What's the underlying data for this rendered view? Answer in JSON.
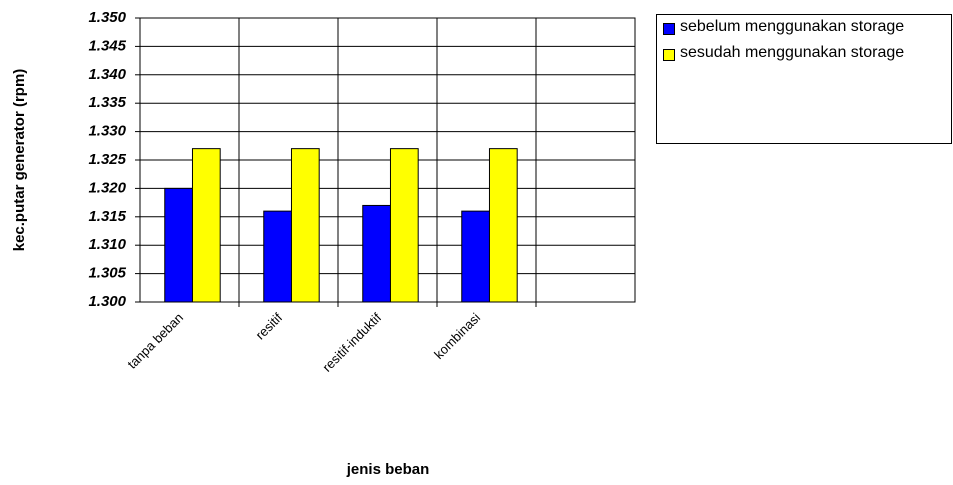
{
  "chart_data": {
    "type": "bar",
    "x_label": "jenis beban",
    "y_label": "kec.putar generator (rpm)",
    "categories": [
      "tanpa beban",
      "resitif",
      "resitif-induktif",
      "kombinasi",
      null
    ],
    "series": [
      {
        "name": "sebelum menggunakan storage",
        "color": "#0000ff",
        "values": [
          1.32,
          1.316,
          1.317,
          1.316,
          null
        ]
      },
      {
        "name": "sesudah menggunakan storage",
        "color": "#ffff00",
        "values": [
          1.327,
          1.327,
          1.327,
          1.327,
          null
        ]
      }
    ],
    "ylim": [
      1.3,
      1.35
    ],
    "yticks": [
      {
        "value": 1.3,
        "label": "1.300"
      },
      {
        "value": 1.305,
        "label": "1.305"
      },
      {
        "value": 1.31,
        "label": "1.310"
      },
      {
        "value": 1.315,
        "label": "1.315"
      },
      {
        "value": 1.32,
        "label": "1.320"
      },
      {
        "value": 1.325,
        "label": "1.325"
      },
      {
        "value": 1.33,
        "label": "1.330"
      },
      {
        "value": 1.335,
        "label": "1.335"
      },
      {
        "value": 1.34,
        "label": "1.340"
      },
      {
        "value": 1.345,
        "label": "1.345"
      },
      {
        "value": 1.35,
        "label": "1.350"
      }
    ],
    "grid": true
  }
}
